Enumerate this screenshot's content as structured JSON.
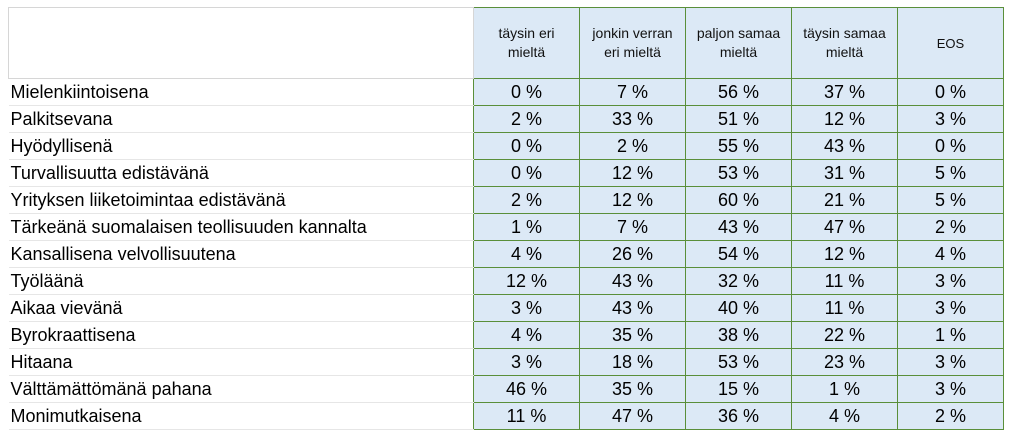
{
  "chart_data": {
    "type": "table",
    "columns": [
      "täysin eri mieltä",
      "jonkin verran eri mieltä",
      "paljon samaa mieltä",
      "täysin samaa mieltä",
      "EOS"
    ],
    "column_lines": [
      [
        "täysin eri",
        "mieltä"
      ],
      [
        "jonkin verran",
        "eri mieltä"
      ],
      [
        "paljon samaa",
        "mieltä"
      ],
      [
        "täysin samaa",
        "mieltä"
      ],
      [
        "EOS"
      ]
    ],
    "rows": [
      {
        "label": "Mielenkiintoisena",
        "values": [
          "0 %",
          "7 %",
          "56 %",
          "37 %",
          "0 %"
        ]
      },
      {
        "label": "Palkitsevana",
        "values": [
          "2 %",
          "33 %",
          "51 %",
          "12 %",
          "3 %"
        ]
      },
      {
        "label": "Hyödyllisenä",
        "values": [
          "0 %",
          "2 %",
          "55 %",
          "43 %",
          "0 %"
        ]
      },
      {
        "label": "Turvallisuutta edistävänä",
        "values": [
          "0 %",
          "12 %",
          "53 %",
          "31 %",
          "5 %"
        ]
      },
      {
        "label": "Yrityksen liiketoimintaa edistävänä",
        "values": [
          "2 %",
          "12 %",
          "60 %",
          "21 %",
          "5 %"
        ]
      },
      {
        "label": "Tärkeänä suomalaisen teollisuuden kannalta",
        "values": [
          "1 %",
          "7 %",
          "43 %",
          "47 %",
          "2 %"
        ]
      },
      {
        "label": "Kansallisena velvollisuutena",
        "values": [
          "4 %",
          "26 %",
          "54 %",
          "12 %",
          "4 %"
        ]
      },
      {
        "label": "Työläänä",
        "values": [
          "12 %",
          "43 %",
          "32 %",
          "11 %",
          "3 %"
        ]
      },
      {
        "label": "Aikaa vievänä",
        "values": [
          "3 %",
          "43 %",
          "40 %",
          "11 %",
          "3 %"
        ]
      },
      {
        "label": "Byrokraattisena",
        "values": [
          "4 %",
          "35 %",
          "38 %",
          "22 %",
          "1 %"
        ]
      },
      {
        "label": "Hitaana",
        "values": [
          "3 %",
          "18 %",
          "53 %",
          "23 %",
          "3 %"
        ]
      },
      {
        "label": "Välttämättömänä pahana",
        "values": [
          "46 %",
          "35 %",
          "15 %",
          "1 %",
          "3 %"
        ]
      },
      {
        "label": "Monimutkaisena",
        "values": [
          "11 %",
          "47 %",
          "36 %",
          "4 %",
          "2 %"
        ]
      }
    ],
    "colors": {
      "cell_fill": "#dce9f6",
      "cell_border": "#5a8f3a"
    }
  }
}
